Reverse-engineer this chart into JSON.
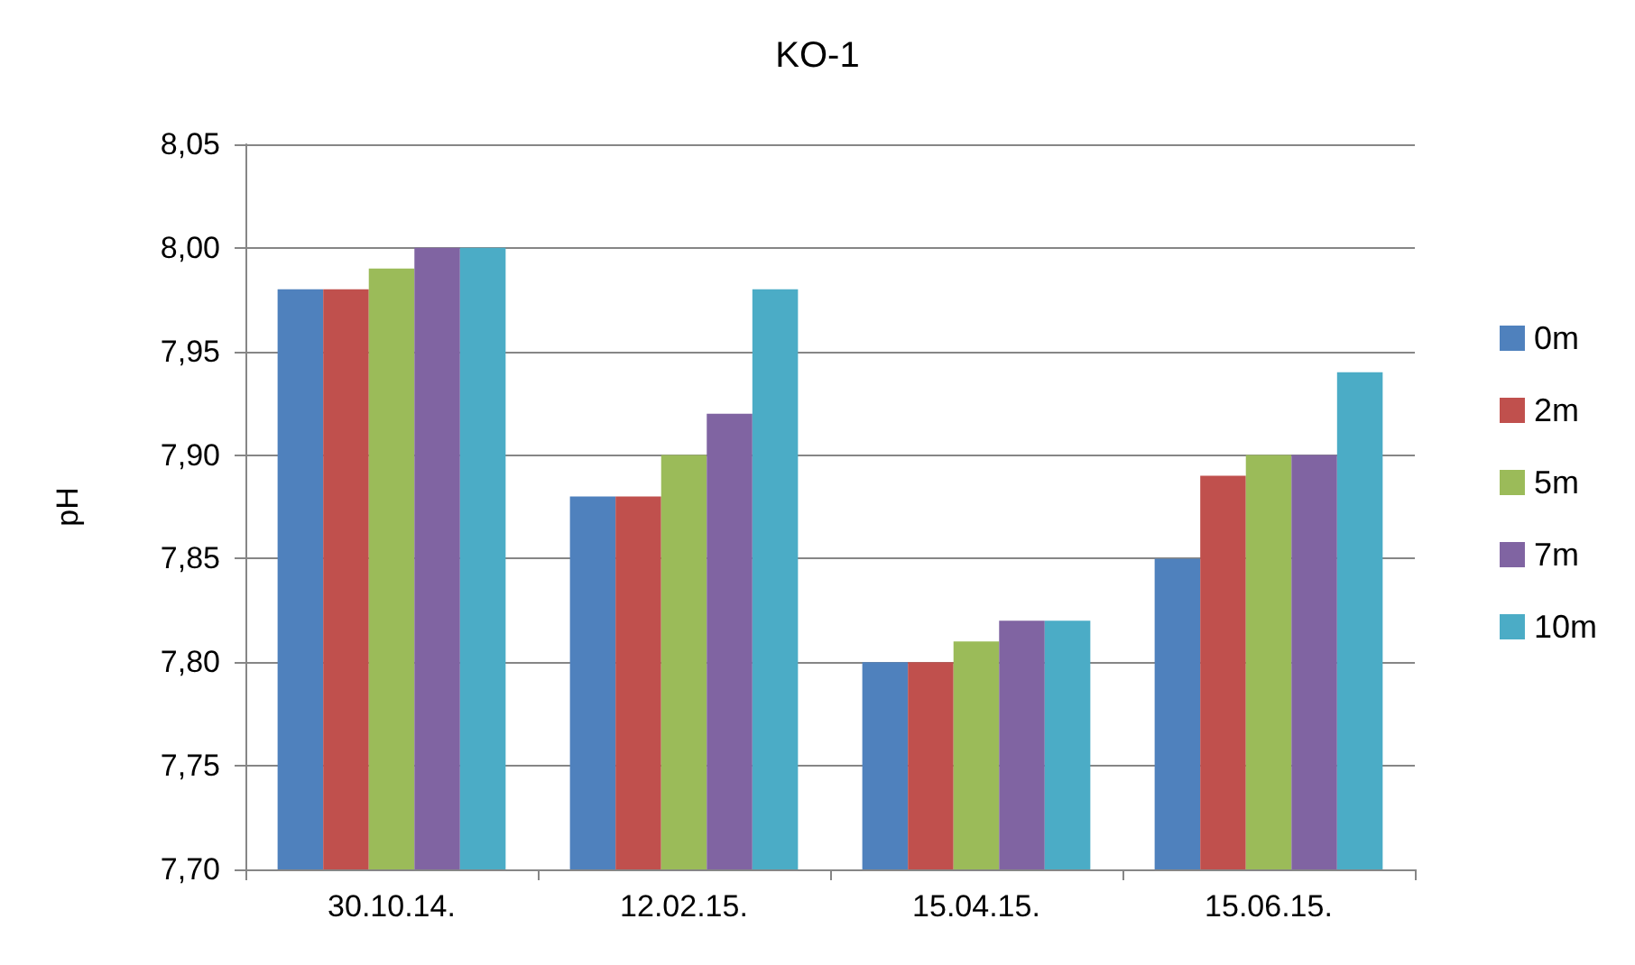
{
  "chart_data": {
    "type": "bar",
    "title": "KO-1",
    "ylabel": "pH",
    "categories": [
      "30.10.14.",
      "12.02.15.",
      "15.04.15.",
      "15.06.15."
    ],
    "series": [
      {
        "name": "0m",
        "color": "#4f81bd",
        "values": [
          7.98,
          7.88,
          7.8,
          7.85
        ]
      },
      {
        "name": "2m",
        "color": "#c0504d",
        "values": [
          7.98,
          7.88,
          7.8,
          7.89
        ]
      },
      {
        "name": "5m",
        "color": "#9bbb59",
        "values": [
          7.99,
          7.9,
          7.81,
          7.9
        ]
      },
      {
        "name": "7m",
        "color": "#8064a2",
        "values": [
          8.0,
          7.92,
          7.82,
          7.9
        ]
      },
      {
        "name": "10m",
        "color": "#4bacc6",
        "values": [
          8.0,
          7.98,
          7.82,
          7.94
        ]
      }
    ],
    "ylim": [
      7.7,
      8.05
    ],
    "yticks": [
      {
        "value": 7.7,
        "label": "7,70"
      },
      {
        "value": 7.75,
        "label": "7,75"
      },
      {
        "value": 7.8,
        "label": "7,80"
      },
      {
        "value": 7.85,
        "label": "7,85"
      },
      {
        "value": 7.9,
        "label": "7,90"
      },
      {
        "value": 7.95,
        "label": "7,95"
      },
      {
        "value": 8.0,
        "label": "8,00"
      },
      {
        "value": 8.05,
        "label": "8,05"
      }
    ],
    "grid": "y",
    "legend": "right"
  }
}
